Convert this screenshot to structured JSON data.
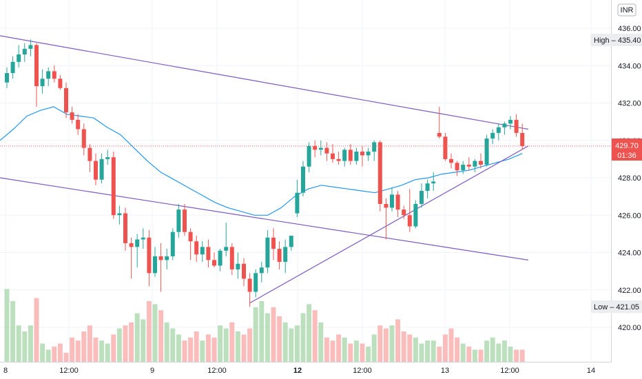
{
  "currency": "INR",
  "price_label": {
    "value": "429.70",
    "countdown": "01:36"
  },
  "high_label": "High – 435.40",
  "low_label": "Low – 421.05",
  "colors": {
    "up": "#26a69a",
    "down": "#ef5350",
    "ma": "#2196f3",
    "trend": "#7e57c2",
    "vol_up": "#a5d6a7",
    "vol_down": "#f8a7a5"
  },
  "chart_data": {
    "type": "candlestick",
    "ylim": [
      418.8,
      437.0
    ],
    "y_ticks": [
      "436.00",
      "434.00",
      "432.00",
      "430.00",
      "428.00",
      "426.00",
      "424.00",
      "422.00",
      "420.00"
    ],
    "x_ticks": [
      {
        "label": "8",
        "bold": false
      },
      {
        "label": "12:00",
        "bold": false
      },
      {
        "label": "9",
        "bold": false
      },
      {
        "label": "12:00",
        "bold": false
      },
      {
        "label": "12",
        "bold": true
      },
      {
        "label": "12:00",
        "bold": false
      },
      {
        "label": "13",
        "bold": false
      },
      {
        "label": "12:00",
        "bold": false
      },
      {
        "label": "14",
        "bold": false
      }
    ],
    "candles": [
      [
        433.1,
        433.9,
        432.8,
        433.6
      ],
      [
        433.6,
        434.5,
        433.3,
        434.2
      ],
      [
        434.2,
        435.1,
        433.9,
        434.6
      ],
      [
        434.6,
        435.2,
        434.2,
        434.9
      ],
      [
        434.9,
        435.4,
        434.5,
        435.1
      ],
      [
        435.1,
        435.2,
        431.8,
        432.9
      ],
      [
        432.9,
        433.8,
        432.5,
        433.3
      ],
      [
        433.3,
        433.9,
        432.9,
        433.7
      ],
      [
        433.7,
        434.0,
        433.1,
        433.3
      ],
      [
        433.3,
        433.5,
        432.7,
        432.8
      ],
      [
        432.8,
        433.1,
        431.2,
        431.5
      ],
      [
        431.5,
        431.8,
        430.9,
        431.1
      ],
      [
        431.1,
        431.4,
        430.3,
        430.6
      ],
      [
        430.6,
        430.9,
        429.2,
        429.6
      ],
      [
        429.6,
        429.8,
        428.3,
        428.9
      ],
      [
        428.9,
        429.3,
        427.6,
        427.9
      ],
      [
        427.9,
        429.3,
        427.7,
        429.0
      ],
      [
        429.0,
        429.5,
        428.7,
        429.1
      ],
      [
        429.1,
        429.4,
        425.8,
        426.0
      ],
      [
        426.0,
        426.5,
        425.5,
        426.1
      ],
      [
        426.1,
        426.4,
        424.1,
        424.5
      ],
      [
        424.5,
        424.8,
        422.6,
        424.3
      ],
      [
        424.3,
        425.0,
        423.2,
        424.7
      ],
      [
        424.7,
        425.3,
        424.2,
        424.8
      ],
      [
        424.8,
        425.2,
        422.2,
        422.9
      ],
      [
        422.9,
        424.3,
        422.7,
        423.8
      ],
      [
        423.8,
        424.5,
        421.9,
        423.6
      ],
      [
        423.6,
        424.2,
        423.1,
        423.8
      ],
      [
        423.8,
        425.3,
        423.6,
        425.1
      ],
      [
        425.1,
        426.6,
        424.8,
        426.3
      ],
      [
        426.3,
        426.6,
        424.9,
        425.1
      ],
      [
        425.1,
        425.3,
        423.6,
        424.6
      ],
      [
        424.6,
        424.9,
        423.5,
        423.9
      ],
      [
        423.9,
        424.6,
        423.5,
        424.3
      ],
      [
        424.3,
        424.7,
        423.2,
        423.6
      ],
      [
        423.6,
        424.0,
        423.2,
        423.3
      ],
      [
        423.3,
        424.2,
        423.0,
        424.1
      ],
      [
        424.1,
        425.6,
        423.8,
        424.3
      ],
      [
        424.3,
        424.5,
        422.8,
        423.1
      ],
      [
        423.1,
        424.0,
        422.6,
        423.4
      ],
      [
        423.4,
        423.7,
        422.2,
        422.6
      ],
      [
        422.6,
        422.9,
        421.1,
        421.9
      ],
      [
        421.9,
        423.1,
        421.6,
        422.9
      ],
      [
        422.9,
        423.5,
        422.4,
        423.2
      ],
      [
        423.2,
        425.2,
        422.9,
        424.8
      ],
      [
        424.8,
        425.3,
        423.6,
        424.2
      ],
      [
        424.2,
        424.6,
        423.1,
        423.5
      ],
      [
        423.5,
        424.7,
        422.9,
        424.3
      ],
      [
        424.3,
        424.9,
        424.1,
        424.9
      ],
      [
        426.1,
        427.9,
        425.9,
        427.2
      ],
      [
        427.2,
        428.9,
        427.0,
        428.6
      ],
      [
        428.6,
        429.9,
        428.3,
        429.7
      ],
      [
        429.7,
        430.0,
        429.1,
        429.5
      ],
      [
        429.5,
        430.0,
        429.2,
        429.6
      ],
      [
        429.6,
        429.9,
        428.9,
        429.3
      ],
      [
        429.3,
        429.8,
        428.8,
        429.0
      ],
      [
        429.0,
        429.4,
        428.7,
        428.9
      ],
      [
        428.9,
        429.6,
        428.6,
        429.5
      ],
      [
        429.5,
        429.8,
        428.7,
        428.9
      ],
      [
        428.9,
        429.6,
        428.7,
        429.4
      ],
      [
        429.4,
        429.7,
        428.6,
        429.2
      ],
      [
        429.2,
        429.6,
        428.9,
        429.4
      ],
      [
        429.4,
        430.0,
        428.9,
        429.9
      ],
      [
        429.9,
        430.0,
        426.2,
        426.6
      ],
      [
        426.6,
        426.9,
        424.7,
        426.4
      ],
      [
        426.4,
        427.5,
        426.2,
        427.1
      ],
      [
        427.1,
        427.3,
        425.9,
        426.3
      ],
      [
        426.3,
        426.5,
        425.8,
        426.0
      ],
      [
        426.0,
        427.4,
        425.1,
        425.4
      ],
      [
        425.4,
        426.8,
        425.3,
        426.6
      ],
      [
        426.6,
        427.7,
        426.4,
        427.3
      ],
      [
        427.3,
        427.9,
        426.9,
        427.7
      ],
      [
        427.7,
        428.3,
        427.3,
        427.8
      ],
      [
        430.4,
        431.8,
        430.1,
        430.2
      ],
      [
        430.2,
        430.4,
        428.9,
        429.0
      ],
      [
        429.0,
        429.3,
        428.5,
        428.8
      ],
      [
        428.8,
        428.9,
        428.1,
        428.4
      ],
      [
        428.4,
        428.9,
        428.2,
        428.7
      ],
      [
        428.7,
        429.1,
        428.4,
        428.6
      ],
      [
        428.6,
        429.0,
        428.3,
        428.9
      ],
      [
        428.9,
        429.3,
        428.5,
        428.7
      ],
      [
        428.7,
        430.3,
        428.6,
        430.1
      ],
      [
        430.1,
        430.6,
        429.8,
        430.4
      ],
      [
        430.4,
        430.9,
        430.0,
        430.7
      ],
      [
        430.7,
        431.0,
        430.3,
        430.9
      ],
      [
        430.9,
        431.3,
        430.6,
        431.1
      ],
      [
        431.1,
        431.4,
        430.2,
        430.4
      ],
      [
        430.4,
        430.9,
        429.5,
        429.7
      ]
    ],
    "volume": [
      0.24,
      0.2,
      0.12,
      0.1,
      0.12,
      0.21,
      0.06,
      0.04,
      0.05,
      0.06,
      0.03,
      0.08,
      0.07,
      0.1,
      0.12,
      0.08,
      0.07,
      0.06,
      0.09,
      0.11,
      0.12,
      0.13,
      0.16,
      0.14,
      0.2,
      0.19,
      0.17,
      0.13,
      0.11,
      0.09,
      0.07,
      0.08,
      0.1,
      0.07,
      0.09,
      0.08,
      0.12,
      0.11,
      0.13,
      0.1,
      0.09,
      0.11,
      0.18,
      0.2,
      0.16,
      0.18,
      0.15,
      0.13,
      0.11,
      0.12,
      0.16,
      0.19,
      0.17,
      0.13,
      0.08,
      0.07,
      0.09,
      0.08,
      0.06,
      0.07,
      0.06,
      0.05,
      0.09,
      0.12,
      0.11,
      0.12,
      0.14,
      0.1,
      0.09,
      0.08,
      0.06,
      0.07,
      0.07,
      0.05,
      0.09,
      0.11,
      0.08,
      0.06,
      0.05,
      0.04,
      0.04,
      0.07,
      0.08,
      0.06,
      0.07,
      0.05,
      0.04,
      0.04
    ],
    "ma": [
      430.0,
      430.6,
      431.3,
      431.6,
      431.8,
      431.4,
      431.3,
      431.2,
      430.7,
      430.3,
      429.6,
      428.9,
      428.3,
      427.9,
      427.5,
      427.1,
      426.7,
      426.4,
      426.2,
      426.0,
      426.0,
      426.4,
      427.0,
      427.4,
      427.6,
      427.5,
      427.4,
      427.3,
      427.2,
      427.4,
      427.6,
      427.9,
      428.0,
      428.2,
      428.3,
      428.4,
      428.6,
      428.8,
      429.0,
      429.3
    ],
    "trendlines": [
      {
        "from": [
          0,
          435.6
        ],
        "to": [
          88,
          430.6
        ]
      },
      {
        "from": [
          0,
          428.0
        ],
        "to": [
          88,
          423.6
        ]
      },
      {
        "from": [
          41,
          421.3
        ],
        "to": [
          88,
          429.7
        ]
      }
    ]
  }
}
